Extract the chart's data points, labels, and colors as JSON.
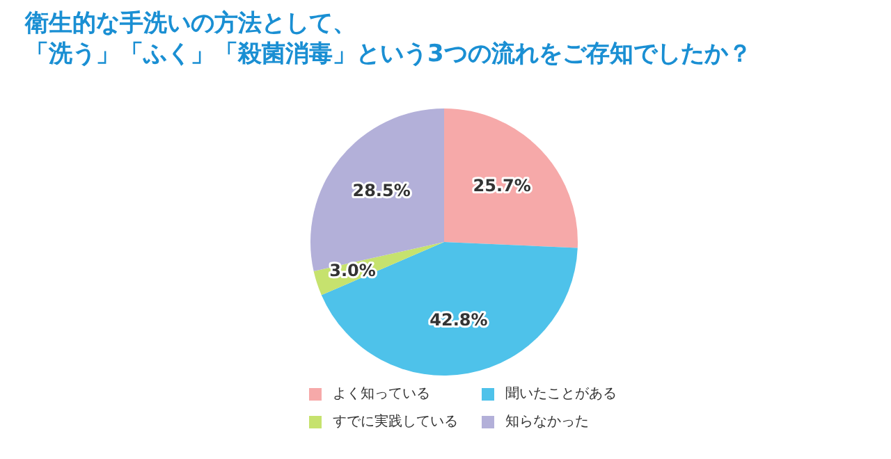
{
  "chart_data": {
    "type": "pie",
    "title": "衛生的な手洗いの方法として、",
    "subtitle": "「洗う」「ふく」「殺菌消毒」という3つの流れをご存知でしたか？",
    "categories": [
      "よく知っている",
      "聞いたことがある",
      "すでに実践している",
      "知らなかった"
    ],
    "values": [
      25.7,
      42.8,
      3.0,
      28.5
    ],
    "colors": [
      "#f6a9a9",
      "#4ec2ea",
      "#c6e26e",
      "#b3b0d9"
    ],
    "value_labels": [
      "25.7%",
      "42.8%",
      "3.0%",
      "28.5%"
    ],
    "legend": "bottom"
  }
}
